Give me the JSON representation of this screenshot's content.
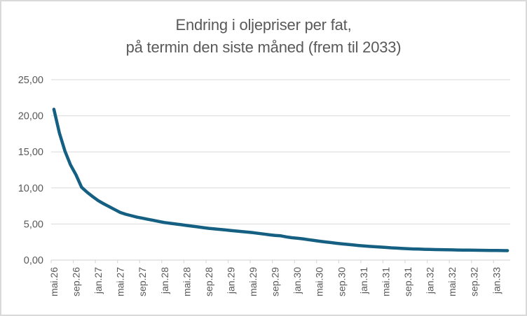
{
  "chart_data": {
    "type": "line",
    "title": "Endring i oljepriser per fat, på termin den siste måned (frem til 2033)",
    "title_lines": [
      "Endring i oljepriser per fat,",
      "på termin den siste måned (frem til 2033)"
    ],
    "xlabel": "",
    "ylabel": "",
    "legend": "none",
    "grid": "horizontal",
    "ylim": [
      0,
      25
    ],
    "y_tick_step": 5,
    "y_tick_labels": [
      "0,00",
      "5,00",
      "10,00",
      "15,00",
      "20,00",
      "25,00"
    ],
    "x_tick_labels": [
      "mai.26",
      "sep.26",
      "jan.27",
      "mai.27",
      "sep.27",
      "jan.28",
      "mai.28",
      "sep.28",
      "jan.29",
      "mai.29",
      "sep.29",
      "jan.30",
      "mai.30",
      "sep.30",
      "jan.31",
      "mai.31",
      "sep.31",
      "jan.32",
      "mai.32",
      "sep.32",
      "jan.33"
    ],
    "points_per_tick": 4,
    "x_frequency": "monthly",
    "values": [
      20.9,
      17.6,
      15.1,
      13.2,
      11.8,
      10.1,
      9.4,
      8.8,
      8.25,
      7.8,
      7.4,
      7.0,
      6.6,
      6.35,
      6.15,
      5.95,
      5.8,
      5.65,
      5.5,
      5.35,
      5.2,
      5.1,
      5.0,
      4.9,
      4.8,
      4.7,
      4.6,
      4.5,
      4.4,
      4.32,
      4.25,
      4.18,
      4.1,
      4.02,
      3.95,
      3.88,
      3.8,
      3.7,
      3.6,
      3.5,
      3.42,
      3.36,
      3.22,
      3.1,
      3.02,
      2.95,
      2.83,
      2.72,
      2.62,
      2.52,
      2.43,
      2.34,
      2.26,
      2.18,
      2.1,
      2.03,
      1.96,
      1.9,
      1.85,
      1.8,
      1.75,
      1.7,
      1.66,
      1.61,
      1.57,
      1.54,
      1.52,
      1.49,
      1.47,
      1.45,
      1.44,
      1.42,
      1.41,
      1.4,
      1.39,
      1.38,
      1.37,
      1.36,
      1.35,
      1.34,
      1.33,
      1.32,
      1.31
    ],
    "colors": {
      "line": "#156082",
      "gridline": "#D9D9D9",
      "axis": "#D9D9D9",
      "text": "#595959",
      "border": "#D9D9D9",
      "background": "#FFFFFF"
    }
  }
}
